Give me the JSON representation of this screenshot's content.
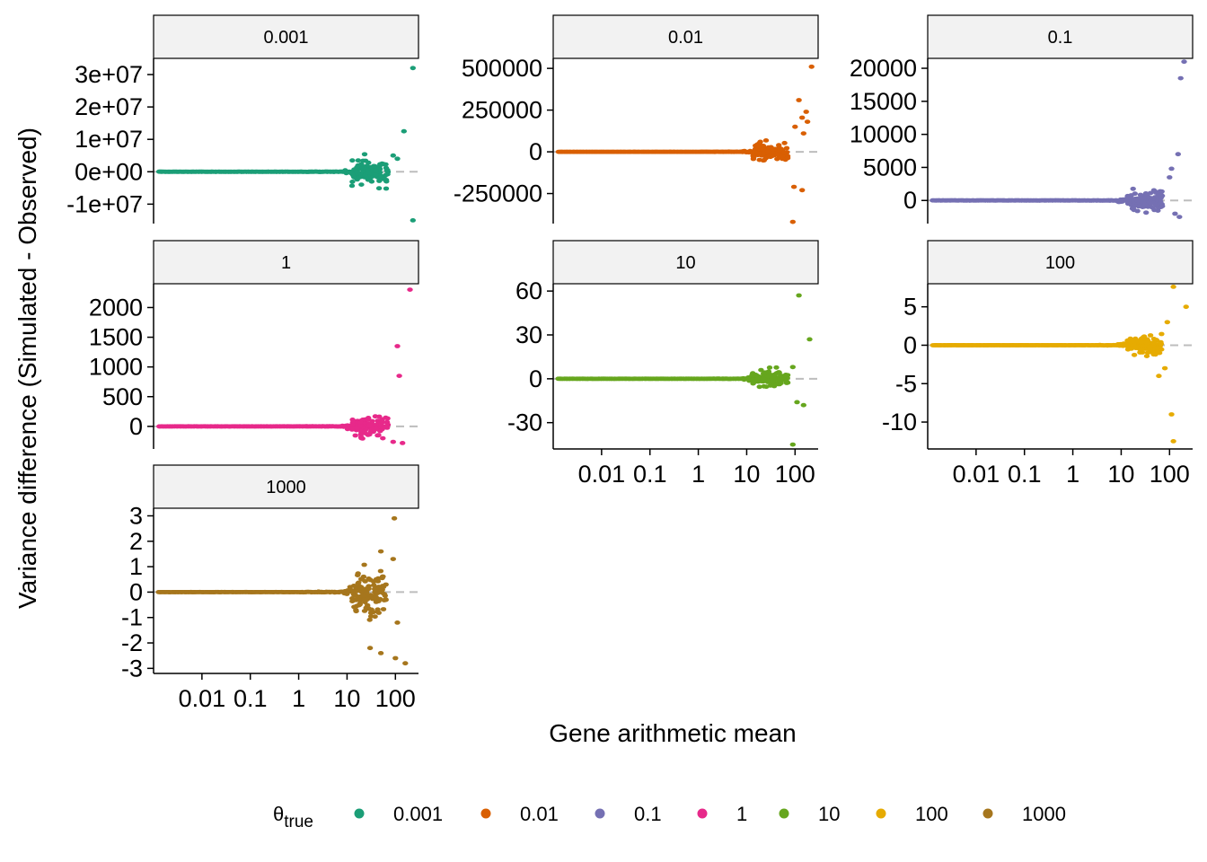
{
  "chart_data": {
    "type": "scatter",
    "title": "",
    "xlabel": "Gene arithmetic mean",
    "ylabel": "Variance difference (Simulated - Observed)",
    "x_scale": "log10",
    "xlim": [
      0.001,
      300
    ],
    "x_ticks": [
      0.01,
      0.1,
      1,
      10,
      100
    ],
    "x_tick_labels": [
      "0.01",
      "0.1",
      "1",
      "10",
      "100"
    ],
    "reference_line": 0,
    "legend": {
      "title": "θ",
      "title_subscript": "true",
      "placement": "bottom",
      "entries": [
        "0.001",
        "0.01",
        "0.1",
        "1",
        "10",
        "100",
        "1000"
      ]
    },
    "panels": [
      {
        "label": "0.001",
        "color": "#1B9E77",
        "ylim": [
          -16000000,
          35000000
        ],
        "y_ticks": [
          -10000000,
          0,
          10000000,
          20000000,
          30000000
        ],
        "y_tick_labels": [
          "-1e+07",
          "0e+00",
          "1e+07",
          "2e+07",
          "3e+07"
        ],
        "spread": 4500000,
        "outliers": [
          [
            230,
            32000000
          ],
          [
            150,
            12500000
          ],
          [
            230,
            -15000000
          ],
          [
            90,
            5000000
          ],
          [
            110,
            4000000
          ]
        ]
      },
      {
        "label": "0.01",
        "color": "#D95F02",
        "ylim": [
          -430000,
          560000
        ],
        "y_ticks": [
          -250000,
          0,
          250000,
          500000
        ],
        "y_tick_labels": [
          "-250000",
          "0",
          "250000",
          "500000"
        ],
        "spread": 60000,
        "outliers": [
          [
            220,
            510000
          ],
          [
            120,
            310000
          ],
          [
            140,
            205000
          ],
          [
            170,
            240000
          ],
          [
            100,
            150000
          ],
          [
            150,
            110000
          ],
          [
            95,
            -210000
          ],
          [
            140,
            -230000
          ],
          [
            90,
            -420000
          ],
          [
            180,
            180000
          ]
        ]
      },
      {
        "label": "0.1",
        "color": "#7570B3",
        "ylim": [
          -3500,
          21500
        ],
        "y_ticks": [
          0,
          5000,
          10000,
          15000,
          20000
        ],
        "y_tick_labels": [
          "0",
          "5000",
          "10000",
          "15000",
          "20000"
        ],
        "spread": 2000,
        "outliers": [
          [
            200,
            21000
          ],
          [
            170,
            18500
          ],
          [
            150,
            7000
          ],
          [
            130,
            -2000
          ],
          [
            110,
            4800
          ],
          [
            160,
            -2500
          ],
          [
            100,
            3500
          ]
        ]
      },
      {
        "label": "1",
        "color": "#E7298A",
        "ylim": [
          -380,
          2400
        ],
        "y_ticks": [
          0,
          500,
          1000,
          1500,
          2000
        ],
        "y_tick_labels": [
          "0",
          "500",
          "1000",
          "1500",
          "2000"
        ],
        "spread": 180,
        "outliers": [
          [
            200,
            2300
          ],
          [
            110,
            1350
          ],
          [
            120,
            850
          ],
          [
            140,
            -280
          ],
          [
            90,
            -260
          ],
          [
            55,
            -200
          ]
        ]
      },
      {
        "label": "10",
        "color": "#66A61E",
        "ylim": [
          -48,
          65
        ],
        "y_ticks": [
          -30,
          0,
          30,
          60
        ],
        "y_tick_labels": [
          "-30",
          "0",
          "30",
          "60"
        ],
        "spread": 6,
        "outliers": [
          [
            120,
            57
          ],
          [
            200,
            27
          ],
          [
            90,
            -45
          ],
          [
            150,
            -18
          ],
          [
            110,
            -16
          ],
          [
            90,
            8
          ]
        ]
      },
      {
        "label": "100",
        "color": "#E6AB02",
        "ylim": [
          -13.5,
          8
        ],
        "y_ticks": [
          -10,
          -5,
          0,
          5
        ],
        "y_tick_labels": [
          "-10",
          "-5",
          "0",
          "5"
        ],
        "spread": 1.4,
        "outliers": [
          [
            120,
            7.6
          ],
          [
            220,
            5
          ],
          [
            110,
            -9
          ],
          [
            120,
            -12.5
          ],
          [
            60,
            -4
          ],
          [
            90,
            3
          ],
          [
            80,
            -3
          ]
        ]
      },
      {
        "label": "1000",
        "color": "#A6761D",
        "ylim": [
          -3.2,
          3.3
        ],
        "y_ticks": [
          -3,
          -2,
          -1,
          0,
          1,
          2,
          3
        ],
        "y_tick_labels": [
          "-3",
          "-2",
          "-1",
          "0",
          "1",
          "2",
          "3"
        ],
        "spread": 1.1,
        "outliers": [
          [
            95,
            2.9
          ],
          [
            50,
            1.6
          ],
          [
            30,
            -2.2
          ],
          [
            50,
            -2.4
          ],
          [
            100,
            -2.6
          ],
          [
            160,
            -2.8
          ],
          [
            90,
            1.3
          ],
          [
            110,
            -1.2
          ]
        ]
      }
    ]
  }
}
